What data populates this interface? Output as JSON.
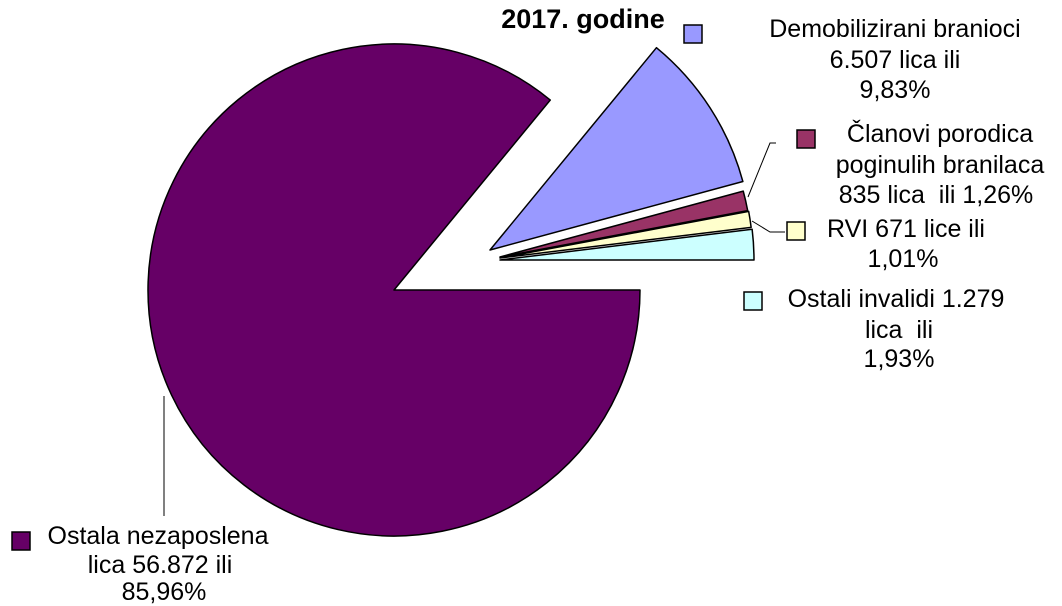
{
  "chart_data": {
    "type": "pie",
    "title": "2017. godine",
    "values": [
      56872,
      6507,
      835,
      671,
      1279
    ],
    "percent": [
      85.96,
      9.83,
      1.26,
      1.01,
      1.93
    ],
    "colors": [
      "#660066",
      "#9999FF",
      "#993366",
      "#FFFFCC",
      "#CCFFFF"
    ],
    "exploded": [
      false,
      true,
      true,
      true,
      true
    ],
    "labels": [
      [
        "Ostala nezaposlena",
        "lica 56.872 ili",
        "85,96%"
      ],
      [
        "Demobilizirani branioci",
        "6.507 lica ili",
        "9,83%"
      ],
      [
        "Članovi porodica",
        "poginulih branilaca",
        "835 lica  ili 1,26%"
      ],
      [
        "RVI 671 lice ili",
        "1,01%"
      ],
      [
        "Ostali invalidi 1.279",
        "lica  ili",
        "1,93%"
      ]
    ]
  }
}
